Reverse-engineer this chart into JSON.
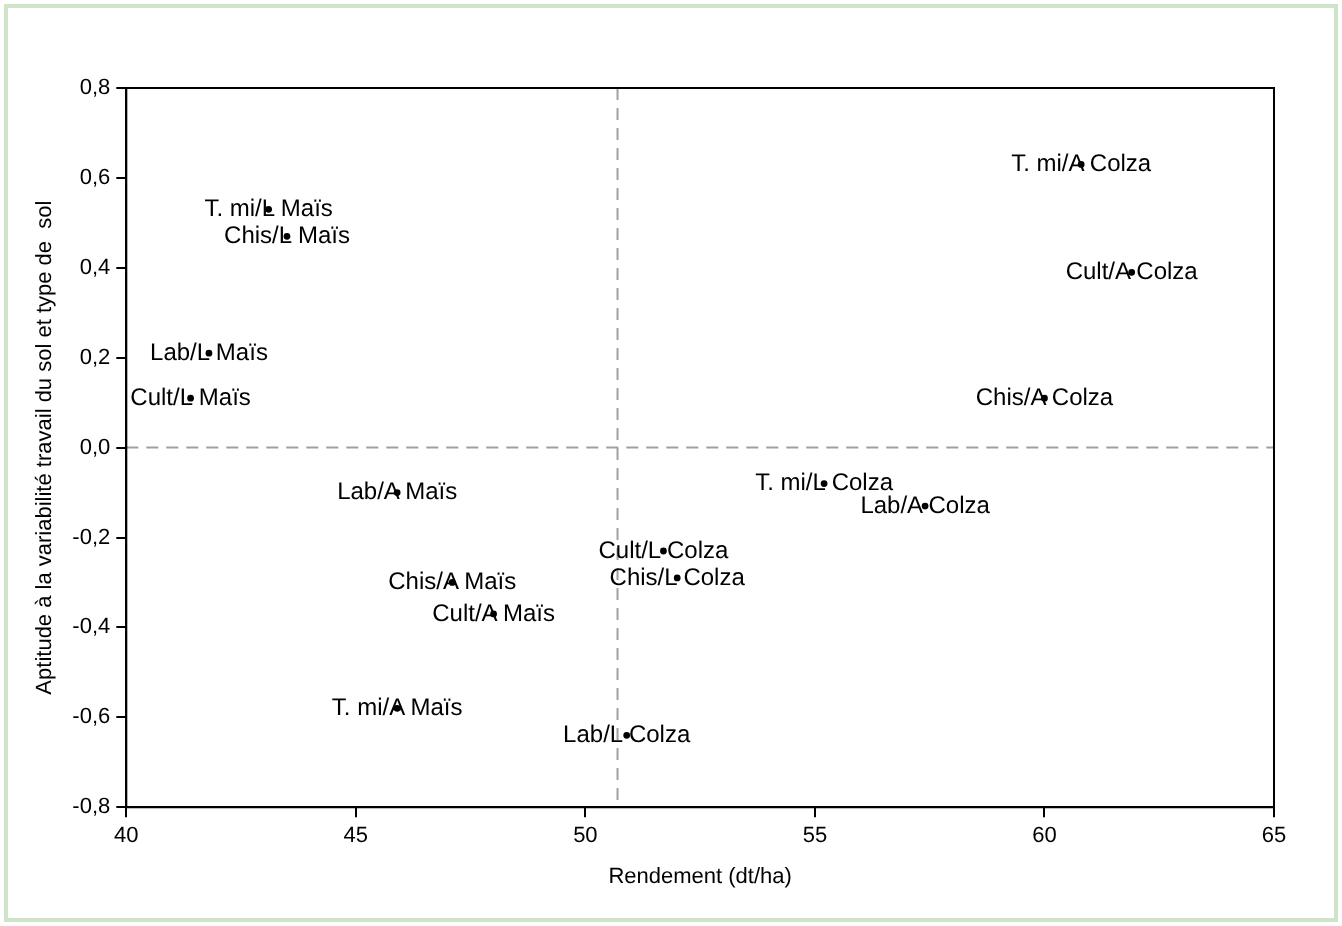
{
  "chart_data": {
    "type": "scatter",
    "xlabel": "Rendement (dt/ha)",
    "ylabel": "Aptitude à la variabilité travail du sol et type de  sol",
    "marker": "circle",
    "series": [
      {
        "color": "#000000",
        "x": [
          43.1,
          43.5,
          41.8,
          41.4,
          45.9,
          47.1,
          48.0,
          45.9,
          50.9,
          51.7,
          52.0,
          55.2,
          57.4,
          60.0,
          61.9,
          60.8
        ],
        "values": [
          0.53,
          0.47,
          0.21,
          0.11,
          -0.1,
          -0.3,
          -0.37,
          -0.58,
          -0.64,
          -0.23,
          -0.29,
          -0.08,
          -0.13,
          0.11,
          0.39,
          0.63
        ],
        "value_labels": [
          "T. mi/L Maïs",
          "Chis/L Maïs",
          "Lab/L Maïs",
          "Cult/L Maïs",
          "Lab/A Maïs",
          "Chis/A Maïs",
          "Cult/A Maïs",
          "T. mi/A Maïs",
          "Lab/L Colza",
          "Cult/L Colza",
          "Chis/L Colza",
          "T. mi/L Colza",
          "Lab/A Colza",
          "Chis/A Colza",
          "Cult/A Colza",
          "T. mi/A Colza"
        ]
      }
    ],
    "xlim": [
      40,
      65
    ],
    "xticks": [
      40,
      45,
      50,
      55,
      60,
      65
    ],
    "ylim": [
      -0.8,
      0.8
    ],
    "yticks": [
      {
        "value": -0.8,
        "label": "-0,8"
      },
      {
        "value": -0.6,
        "label": "-0,6"
      },
      {
        "value": -0.4,
        "label": "-0,4"
      },
      {
        "value": -0.2,
        "label": "-0,2"
      },
      {
        "value": 0,
        "label": "0,0"
      },
      {
        "value": 0.2,
        "label": "0,2"
      },
      {
        "value": 0.4,
        "label": "0,4"
      },
      {
        "value": 0.6,
        "label": "0,6"
      },
      {
        "value": 0.8,
        "label": "0,8"
      }
    ],
    "ref_lines": [
      {
        "axis": "x",
        "value": 50.7,
        "color": "#a0a0a0",
        "line_style": "dashed"
      },
      {
        "axis": "y",
        "value": 0,
        "color": "#a0a0a0",
        "line_style": "dashed"
      }
    ],
    "grid": false,
    "legend": false
  }
}
